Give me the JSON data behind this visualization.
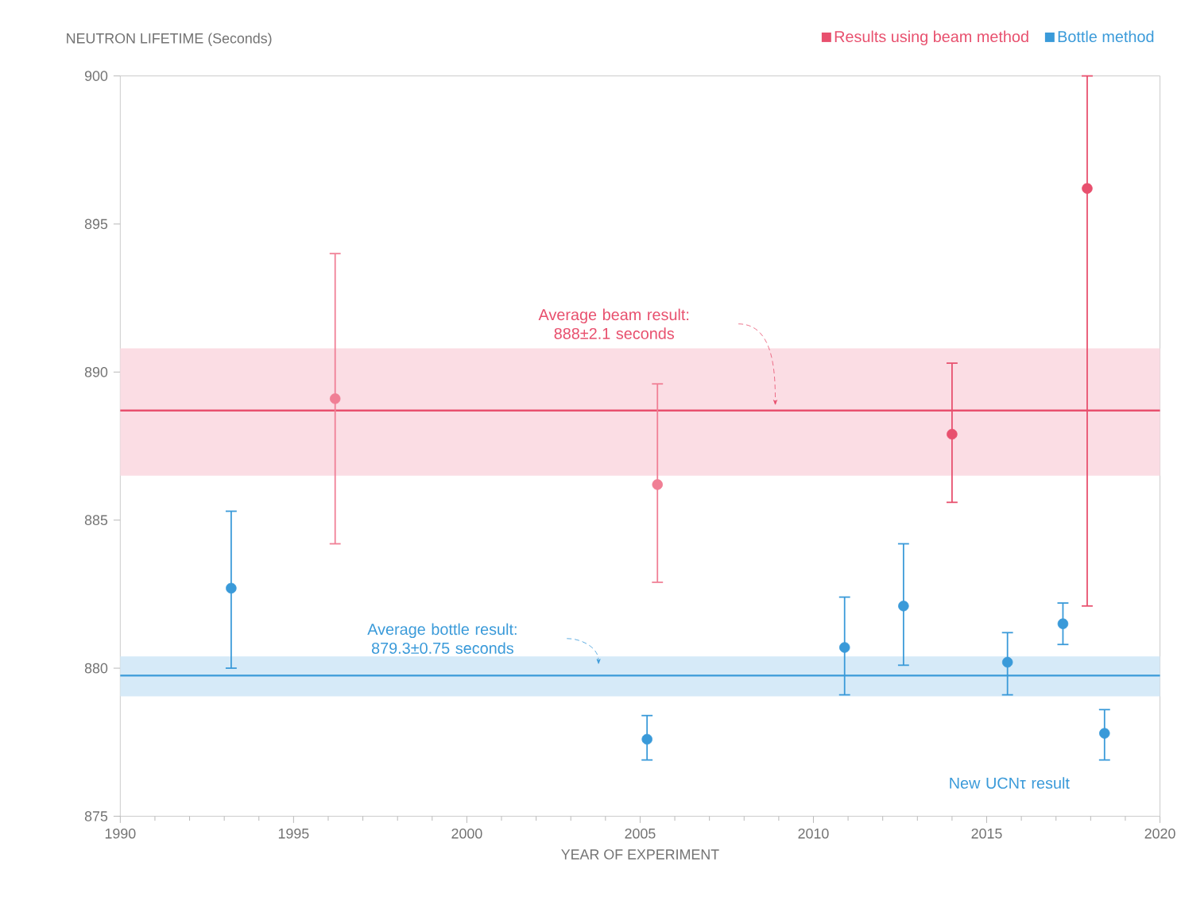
{
  "chart_data": {
    "type": "scatter",
    "ylabel": "NEUTRON LIFETIME (Seconds)",
    "xlabel": "YEAR OF EXPERIMENT",
    "xlim": [
      1990,
      2020
    ],
    "xticks": [
      1990,
      1995,
      2000,
      2005,
      2010,
      2015,
      2020
    ],
    "ylim": [
      875,
      900
    ],
    "yticks": [
      875,
      880,
      885,
      890,
      895,
      900
    ],
    "marker": "circle",
    "legend": "top right",
    "series": [
      {
        "name": "Results using beam method",
        "color": "#e8506e",
        "colors": [
          "#f07f95",
          "#f07f95",
          "#e8506e",
          "#e8506e"
        ],
        "x": [
          1996.2,
          2005.5,
          2014.0,
          2017.9
        ],
        "values": [
          889.1,
          886.2,
          887.9,
          896.2
        ],
        "errors": [
          [
            884.2,
            894.0
          ],
          [
            882.9,
            889.6
          ],
          [
            885.6,
            890.3
          ],
          [
            882.1,
            900
          ]
        ]
      },
      {
        "name": "Bottle method",
        "color": "#3a9ad9",
        "x": [
          1993.2,
          2005.2,
          2010.9,
          2012.6,
          2015.6,
          2017.2,
          2018.4
        ],
        "values": [
          882.7,
          877.6,
          880.7,
          882.1,
          880.2,
          881.5,
          877.8
        ],
        "errors": [
          [
            880.0,
            885.3
          ],
          [
            876.9,
            878.4
          ],
          [
            879.1,
            882.4
          ],
          [
            880.1,
            884.2
          ],
          [
            879.1,
            881.2
          ],
          [
            880.8,
            882.2
          ],
          [
            876.9,
            878.6
          ]
        ]
      }
    ],
    "ref_lines": [
      {
        "axis": "y",
        "value": 888.7,
        "color": "#e8506e"
      },
      {
        "axis": "y",
        "value": 879.75,
        "color": "#3a9ad9"
      }
    ],
    "bands": [
      {
        "axis": "y",
        "from": 886.5,
        "to": 890.8,
        "color": "#fbdde4"
      },
      {
        "axis": "y",
        "from": 879.05,
        "to": 880.4,
        "color": "#d6eaf8"
      }
    ],
    "annotations": [
      "Average beam result: 888±2.1 seconds",
      "Average bottle result: 879.3±0.75 seconds",
      "New UCNτ result"
    ]
  }
}
